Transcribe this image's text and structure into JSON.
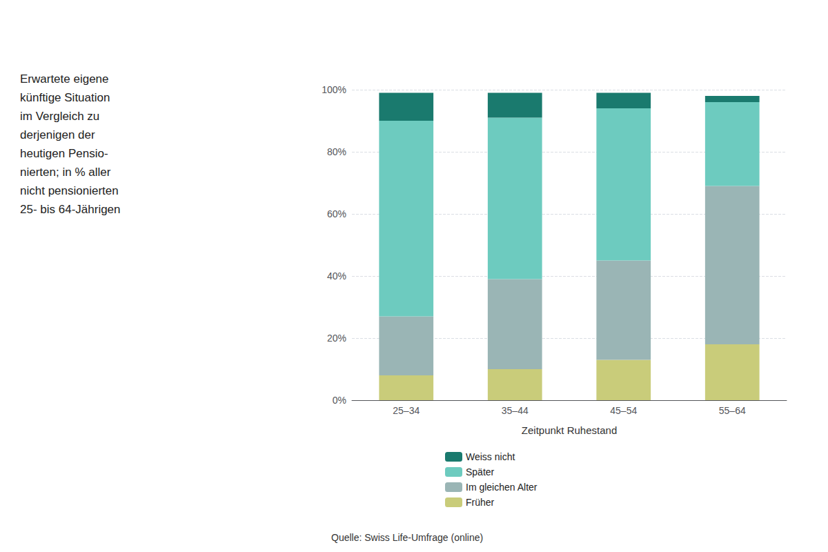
{
  "chart_data": {
    "type": "bar",
    "title": "Erwartete eigene\nkünftige Situation\nim Vergleich zu\nderjenigen der\nheutigen Pensio-\nnierten; in % aller\nnicht pensionierten\n25- bis 64-Jährigen",
    "x_label": "Zeitpunkt Ruhestand",
    "annotations": [
      "Quelle: Swiss Life-Umfrage (online)"
    ],
    "categories": [
      "25–34",
      "35–44",
      "45–54",
      "55–64"
    ],
    "series": [
      {
        "name": "Früher",
        "color": "#c9cc7a",
        "values": [
          8,
          10,
          13,
          18
        ]
      },
      {
        "name": "Im gleichen Alter",
        "color": "#9ab5b5",
        "values": [
          19,
          29,
          32,
          51
        ]
      },
      {
        "name": "Später",
        "color": "#6dcbbf",
        "values": [
          63,
          52,
          49,
          27
        ]
      },
      {
        "name": "Weiss nicht",
        "color": "#1a7a6e",
        "values": [
          9,
          8,
          5,
          2
        ]
      }
    ],
    "stacked": true,
    "ylim": [
      0,
      100
    ],
    "yticks": [
      {
        "value": 0,
        "label": "0%"
      },
      {
        "value": 20,
        "label": "20%"
      },
      {
        "value": 40,
        "label": "40%"
      },
      {
        "value": 60,
        "label": "60%"
      },
      {
        "value": 80,
        "label": "80%"
      },
      {
        "value": 100,
        "label": "100%"
      }
    ],
    "grid": true,
    "legend": "bottom"
  }
}
